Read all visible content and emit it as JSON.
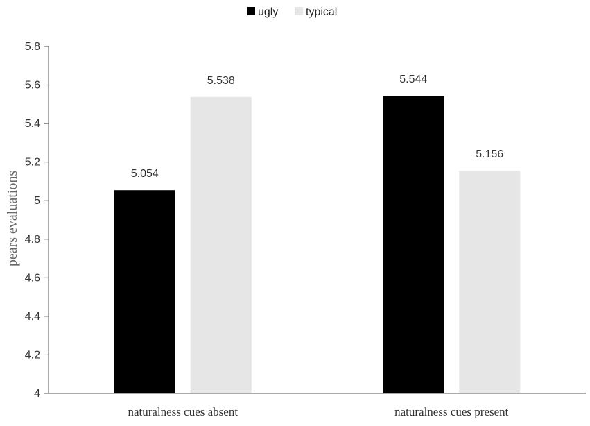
{
  "chart_data": {
    "type": "bar",
    "categories": [
      "naturalness cues absent",
      "naturalness cues present"
    ],
    "series": [
      {
        "name": "ugly",
        "values": [
          5.054,
          5.544
        ],
        "labels": [
          "5.054",
          "5.544"
        ],
        "color": "#000000"
      },
      {
        "name": "typical",
        "values": [
          5.538,
          5.156
        ],
        "labels": [
          "5.538",
          "5.156"
        ],
        "color": "#e6e6e6"
      }
    ],
    "xlabel": "",
    "ylabel": "pears evaluations",
    "ylim": [
      4,
      5.8
    ],
    "yticks": [
      "4",
      "4.2",
      "4.4",
      "4.6",
      "4.8",
      "5",
      "5.2",
      "5.4",
      "5.6",
      "5.8"
    ],
    "grid": false,
    "legend_position": "top-center"
  }
}
